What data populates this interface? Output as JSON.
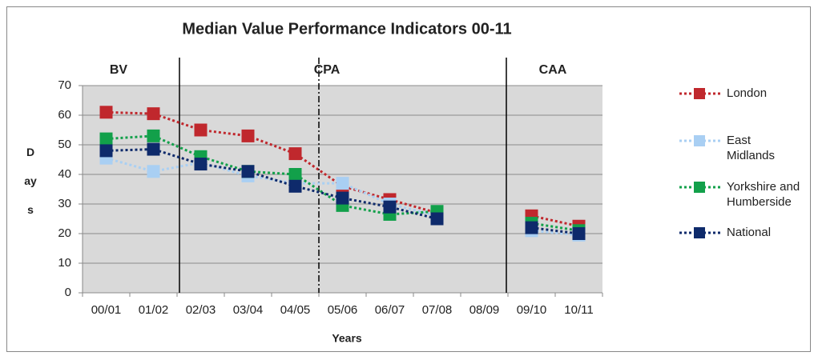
{
  "chart_data": {
    "type": "line",
    "title": "Median Value Performance Indicators 00-11",
    "x_label": "Years",
    "y_label": "Days",
    "annotations": [
      "BV",
      "CPA",
      "CAA"
    ],
    "categories": [
      "00/01",
      "01/02",
      "02/03",
      "03/04",
      "04/05",
      "05/06",
      "06/07",
      "07/08",
      "08/09",
      "09/10",
      "10/11"
    ],
    "series": [
      {
        "name": "London",
        "color": "#c0282d",
        "values": [
          61,
          60.5,
          55,
          53,
          47,
          36,
          31.5,
          27,
          null,
          26,
          22.5
        ]
      },
      {
        "name": "East Midlands",
        "color": "#a9cff3",
        "values": [
          45.5,
          41,
          44,
          39.5,
          37,
          37,
          30,
          26,
          null,
          21,
          19.5
        ]
      },
      {
        "name": "Yorkshire and Humberside",
        "color": "#12a04a",
        "values": [
          52,
          53,
          46,
          41,
          40,
          29.5,
          26.5,
          27.5,
          null,
          23.5,
          21
        ]
      },
      {
        "name": "National",
        "color": "#0e2a6b",
        "values": [
          48,
          48.5,
          43.5,
          41,
          36,
          32,
          29,
          25,
          null,
          22,
          20
        ]
      }
    ],
    "ylim": [
      0,
      70
    ],
    "yticks": [
      0,
      10,
      20,
      30,
      40,
      50,
      60,
      70
    ],
    "grid": true
  }
}
